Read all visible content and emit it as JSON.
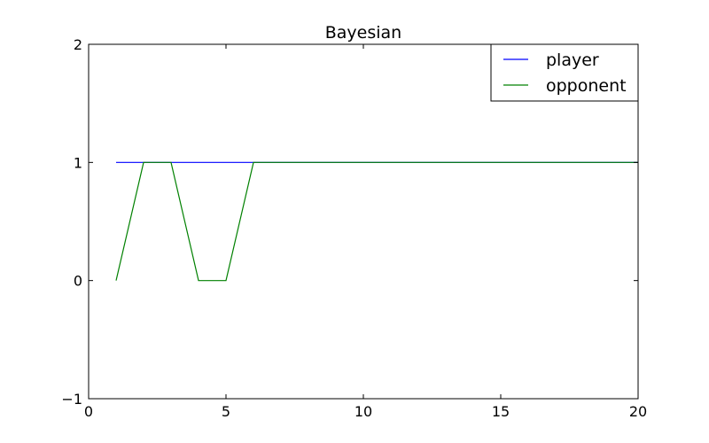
{
  "chart_data": {
    "type": "line",
    "title": "Bayesian",
    "xlabel": "",
    "ylabel": "",
    "xlim": [
      0,
      20
    ],
    "ylim": [
      -1,
      2
    ],
    "xticks": [
      0,
      5,
      10,
      15,
      20
    ],
    "xtick_labels": [
      "0",
      "5",
      "10",
      "15",
      "20"
    ],
    "yticks": [
      -1,
      0,
      1,
      2
    ],
    "ytick_labels": [
      "−1",
      "0",
      "1",
      "2"
    ],
    "grid": false,
    "legend_position": "top-right",
    "series": [
      {
        "name": "player",
        "color": "#0000ff",
        "x": [
          1,
          2,
          3,
          4,
          5,
          6,
          7,
          8,
          9,
          10,
          11,
          12,
          13,
          14,
          15,
          16,
          17,
          18,
          19,
          20
        ],
        "y": [
          1,
          1,
          1,
          1,
          1,
          1,
          1,
          1,
          1,
          1,
          1,
          1,
          1,
          1,
          1,
          1,
          1,
          1,
          1,
          1
        ]
      },
      {
        "name": "opponent",
        "color": "#008000",
        "x": [
          1,
          2,
          3,
          4,
          5,
          6,
          7,
          8,
          9,
          10,
          11,
          12,
          13,
          14,
          15,
          16,
          17,
          18,
          19,
          20
        ],
        "y": [
          0,
          1,
          1,
          0,
          0,
          1,
          1,
          1,
          1,
          1,
          1,
          1,
          1,
          1,
          1,
          1,
          1,
          1,
          1,
          1
        ]
      }
    ]
  }
}
